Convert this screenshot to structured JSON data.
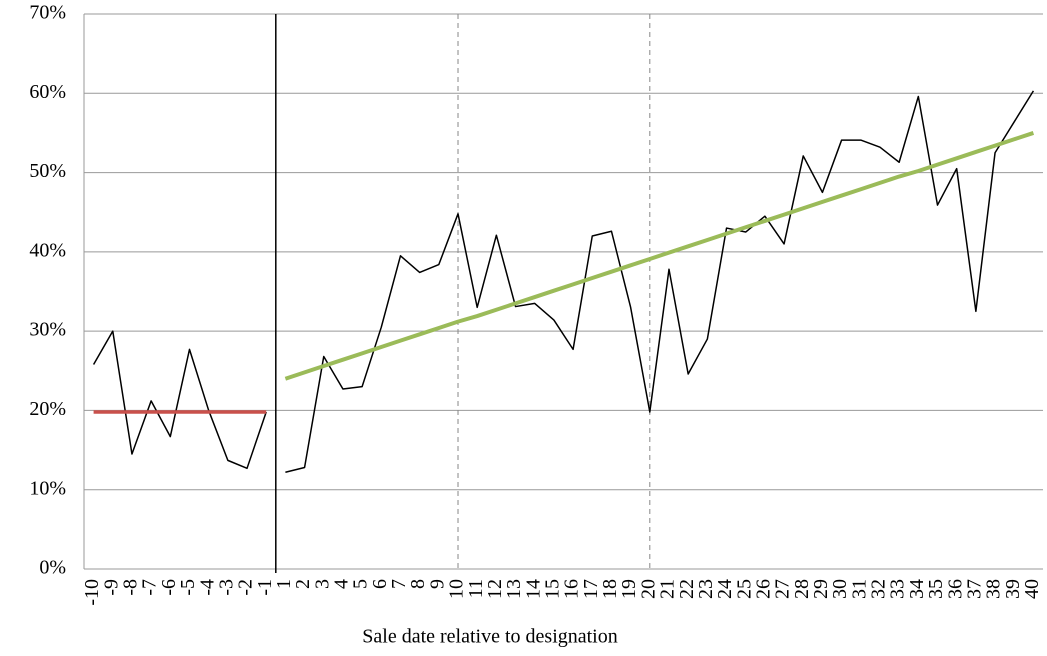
{
  "chart_data": {
    "type": "line",
    "x_label": "Sale date relative to designation",
    "categories": [
      "-10",
      "-9",
      "-8",
      "-7",
      "-6",
      "-5",
      "-4",
      "-3",
      "-2",
      "-1",
      "1",
      "2",
      "3",
      "4",
      "5",
      "6",
      "7",
      "8",
      "9",
      "10",
      "11",
      "12",
      "13",
      "14",
      "15",
      "16",
      "17",
      "18",
      "19",
      "20",
      "21",
      "22",
      "23",
      "24",
      "25",
      "26",
      "27",
      "28",
      "29",
      "30",
      "31",
      "32",
      "33",
      "34",
      "35",
      "36",
      "37",
      "38",
      "39",
      "40"
    ],
    "series": [
      {
        "color": "#000000",
        "width": 1.5,
        "values": [
          25.8,
          30,
          14.5,
          21.2,
          16.7,
          27.7,
          20,
          13.7,
          12.7,
          19.8,
          null,
          null,
          null,
          null,
          null,
          null,
          null,
          null,
          null,
          null,
          null,
          null,
          null,
          null,
          null,
          null,
          null,
          null,
          null,
          null,
          null,
          null,
          null,
          null,
          null,
          null,
          null,
          null,
          null,
          null,
          null,
          null,
          null,
          null,
          null,
          null,
          null,
          null,
          null,
          null
        ]
      },
      {
        "color": "#000000",
        "width": 1.5,
        "values": [
          null,
          null,
          null,
          null,
          null,
          null,
          null,
          null,
          null,
          null,
          12.2,
          12.8,
          26.8,
          22.7,
          23,
          30.5,
          39.5,
          37.4,
          38.4,
          44.8,
          33,
          42.1,
          33.1,
          33.5,
          31.4,
          27.7,
          42,
          42.6,
          33,
          19.8,
          37.8,
          24.6,
          29,
          43,
          42.5,
          44.5,
          41,
          52.1,
          47.5,
          54.1,
          54.1,
          53.2,
          51.3,
          59.6,
          45.9,
          50.5,
          32.5,
          52.5,
          56.4,
          60.3
        ]
      },
      {
        "color": "#c9504b",
        "width": 3.5,
        "values": [
          19.8,
          19.8,
          19.8,
          19.8,
          19.8,
          19.8,
          19.8,
          19.8,
          19.8,
          19.8,
          null,
          null,
          null,
          null,
          null,
          null,
          null,
          null,
          null,
          null,
          null,
          null,
          null,
          null,
          null,
          null,
          null,
          null,
          null,
          null,
          null,
          null,
          null,
          null,
          null,
          null,
          null,
          null,
          null,
          null,
          null,
          null,
          null,
          null,
          null,
          null,
          null,
          null,
          null,
          null
        ]
      },
      {
        "color": "#9bbb59",
        "width": 4,
        "values": [
          null,
          null,
          null,
          null,
          null,
          null,
          null,
          null,
          null,
          null,
          24.0,
          24.8,
          25.6,
          26.4,
          27.2,
          28.0,
          28.8,
          29.6,
          30.4,
          31.2,
          31.9,
          32.7,
          33.5,
          34.3,
          35.1,
          35.9,
          36.7,
          37.5,
          38.3,
          39.1,
          39.9,
          40.7,
          41.5,
          42.3,
          43.1,
          43.9,
          44.7,
          45.5,
          46.3,
          47.1,
          47.9,
          48.7,
          49.5,
          50.2,
          51.0,
          51.8,
          52.6,
          53.4,
          54.2,
          55.0
        ]
      }
    ],
    "ylim": [
      0,
      70
    ],
    "yticks": [
      {
        "value": 0,
        "label": "0%"
      },
      {
        "value": 10,
        "label": "10%"
      },
      {
        "value": 20,
        "label": "20%"
      },
      {
        "value": 30,
        "label": "30%"
      },
      {
        "value": 40,
        "label": "40%"
      },
      {
        "value": 50,
        "label": "50%"
      },
      {
        "value": 60,
        "label": "60%"
      },
      {
        "value": 70,
        "label": "70%"
      }
    ],
    "grid": true,
    "divider_after": "-1",
    "reference_lines": [
      {
        "category": "10",
        "style": "dashed"
      },
      {
        "category": "20",
        "style": "dashed"
      }
    ]
  }
}
